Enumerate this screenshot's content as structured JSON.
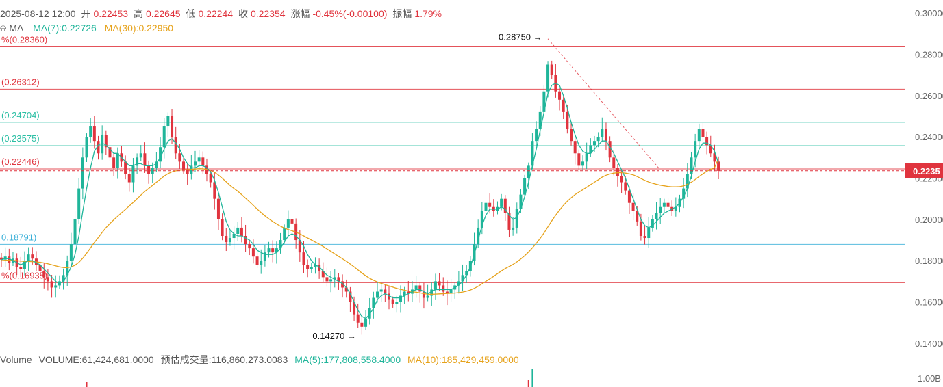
{
  "header": {
    "datetime": "2025-08-12 12:00",
    "open_label": "开",
    "open": "0.22453",
    "high_label": "高",
    "high": "0.22645",
    "low_label": "低",
    "low": "0.22244",
    "close_label": "收",
    "close": "0.22354",
    "change_label": "涨幅",
    "change": "-0.45%(-0.00100)",
    "amplitude_label": "振幅",
    "amplitude": "1.79%"
  },
  "ma_legend": {
    "label": "MA",
    "ma7": "MA(7):0.22726",
    "ma30": "MA(30):0.22950"
  },
  "volume_legend": {
    "label": "Volume",
    "volume": "VOLUME:61,424,681.0000",
    "estimated": "预估成交量:116,860,273.0083",
    "ma5": "MA(5):177,808,558.4000",
    "ma10": "MA(10):185,429,459.0000"
  },
  "colors": {
    "up": "#1fb59a",
    "down": "#e0343e",
    "ma7": "#1fb59a",
    "ma30": "#e6a21a",
    "fib_red": "#e0343e",
    "fib_teal": "#2bbfa4",
    "fib_blue": "#3ab0d8"
  },
  "chart_data": {
    "type": "candlestick",
    "y_ticks": [
      "0.30000",
      "0.28000",
      "0.26000",
      "0.24000",
      "0.22000",
      "0.20000",
      "0.18000",
      "0.16000",
      "0.14000"
    ],
    "ylim": [
      0.138,
      0.301
    ],
    "current_price": "0.2235",
    "current_price_value": 0.22354,
    "annotations": {
      "high": {
        "label": "0.28750",
        "value": 0.2875,
        "index": 141
      },
      "low": {
        "label": "0.14270",
        "value": 0.1427,
        "index": 93
      }
    },
    "fib_levels": [
      {
        "label": "%(0.28360)",
        "value": 0.2836,
        "color": "red"
      },
      {
        "label": "(0.26312)",
        "value": 0.26312,
        "color": "red"
      },
      {
        "label": "(0.24704)",
        "value": 0.24704,
        "color": "teal"
      },
      {
        "label": "(0.23575)",
        "value": 0.23575,
        "color": "teal"
      },
      {
        "label": "(0.22446)",
        "value": 0.22446,
        "color": "red"
      },
      {
        "label": "0.18791)",
        "value": 0.18791,
        "color": "blue"
      },
      {
        "label": "%(0.16935)",
        "value": 0.16935,
        "color": "red"
      }
    ],
    "closes": [
      0.1805,
      0.182,
      0.179,
      0.181,
      0.177,
      0.176,
      0.18,
      0.183,
      0.181,
      0.178,
      0.175,
      0.172,
      0.17,
      0.167,
      0.168,
      0.17,
      0.173,
      0.18,
      0.188,
      0.2,
      0.215,
      0.23,
      0.24,
      0.245,
      0.238,
      0.232,
      0.241,
      0.235,
      0.23,
      0.225,
      0.232,
      0.228,
      0.222,
      0.218,
      0.226,
      0.23,
      0.232,
      0.226,
      0.222,
      0.225,
      0.228,
      0.235,
      0.245,
      0.25,
      0.24,
      0.232,
      0.228,
      0.224,
      0.222,
      0.226,
      0.228,
      0.23,
      0.226,
      0.222,
      0.218,
      0.21,
      0.2,
      0.192,
      0.189,
      0.191,
      0.193,
      0.196,
      0.192,
      0.188,
      0.186,
      0.182,
      0.178,
      0.18,
      0.184,
      0.186,
      0.184,
      0.186,
      0.19,
      0.196,
      0.2,
      0.198,
      0.19,
      0.184,
      0.178,
      0.176,
      0.177,
      0.178,
      0.175,
      0.172,
      0.17,
      0.171,
      0.172,
      0.17,
      0.167,
      0.165,
      0.16,
      0.154,
      0.15,
      0.148,
      0.152,
      0.157,
      0.162,
      0.165,
      0.166,
      0.164,
      0.161,
      0.159,
      0.16,
      0.163,
      0.165,
      0.164,
      0.166,
      0.168,
      0.165,
      0.162,
      0.163,
      0.166,
      0.17,
      0.168,
      0.165,
      0.164,
      0.166,
      0.168,
      0.17,
      0.173,
      0.175,
      0.18,
      0.188,
      0.196,
      0.204,
      0.208,
      0.206,
      0.204,
      0.206,
      0.21,
      0.203,
      0.195,
      0.196,
      0.205,
      0.212,
      0.22,
      0.226,
      0.238,
      0.244,
      0.252,
      0.262,
      0.275,
      0.27,
      0.262,
      0.258,
      0.252,
      0.244,
      0.238,
      0.232,
      0.226,
      0.228,
      0.232,
      0.236,
      0.238,
      0.24,
      0.244,
      0.238,
      0.23,
      0.225,
      0.221,
      0.218,
      0.214,
      0.208,
      0.204,
      0.199,
      0.192,
      0.191,
      0.196,
      0.2,
      0.203,
      0.206,
      0.208,
      0.206,
      0.204,
      0.206,
      0.21,
      0.215,
      0.222,
      0.23,
      0.238,
      0.244,
      0.24,
      0.236,
      0.232,
      0.228,
      0.2235
    ],
    "ma7": [
      0.1805,
      0.181,
      0.181,
      0.18,
      0.179,
      0.178,
      0.179,
      0.18,
      0.18,
      0.179,
      0.178,
      0.176,
      0.174,
      0.172,
      0.17,
      0.169,
      0.17,
      0.173,
      0.177,
      0.183,
      0.192,
      0.204,
      0.215,
      0.225,
      0.233,
      0.236,
      0.237,
      0.236,
      0.234,
      0.232,
      0.232,
      0.23,
      0.228,
      0.226,
      0.226,
      0.227,
      0.227,
      0.226,
      0.226,
      0.226,
      0.227,
      0.23,
      0.234,
      0.238,
      0.239,
      0.237,
      0.234,
      0.23,
      0.227,
      0.225,
      0.225,
      0.226,
      0.226,
      0.225,
      0.223,
      0.219,
      0.213,
      0.206,
      0.199,
      0.195,
      0.193,
      0.192,
      0.192,
      0.191,
      0.19,
      0.188,
      0.185,
      0.184,
      0.183,
      0.183,
      0.183,
      0.184,
      0.186,
      0.189,
      0.192,
      0.193,
      0.192,
      0.19,
      0.187,
      0.183,
      0.18,
      0.178,
      0.177,
      0.175,
      0.173,
      0.172,
      0.171,
      0.17,
      0.169,
      0.167,
      0.164,
      0.16,
      0.156,
      0.153,
      0.152,
      0.154,
      0.157,
      0.161,
      0.163,
      0.164,
      0.163,
      0.162,
      0.162,
      0.162,
      0.163,
      0.164,
      0.165,
      0.166,
      0.166,
      0.165,
      0.164,
      0.165,
      0.166,
      0.166,
      0.166,
      0.166,
      0.166,
      0.167,
      0.168,
      0.17,
      0.173,
      0.177,
      0.183,
      0.19,
      0.197,
      0.202,
      0.205,
      0.205,
      0.205,
      0.206,
      0.205,
      0.202,
      0.2,
      0.201,
      0.205,
      0.211,
      0.218,
      0.226,
      0.234,
      0.243,
      0.252,
      0.261,
      0.265,
      0.266,
      0.265,
      0.26,
      0.254,
      0.247,
      0.241,
      0.236,
      0.233,
      0.232,
      0.232,
      0.234,
      0.236,
      0.238,
      0.238,
      0.235,
      0.232,
      0.228,
      0.224,
      0.22,
      0.215,
      0.21,
      0.205,
      0.2,
      0.197,
      0.196,
      0.197,
      0.199,
      0.201,
      0.203,
      0.204,
      0.205,
      0.206,
      0.208,
      0.211,
      0.215,
      0.221,
      0.228,
      0.234,
      0.237,
      0.237,
      0.236,
      0.233,
      0.2273
    ],
    "ma30": [
      0.18,
      0.1802,
      0.1802,
      0.1801,
      0.18,
      0.1798,
      0.1797,
      0.1796,
      0.1795,
      0.1794,
      0.1792,
      0.1789,
      0.1785,
      0.178,
      0.1775,
      0.177,
      0.1767,
      0.1766,
      0.177,
      0.1778,
      0.1792,
      0.1812,
      0.1836,
      0.1862,
      0.1888,
      0.1912,
      0.1937,
      0.196,
      0.198,
      0.1998,
      0.2015,
      0.2032,
      0.2048,
      0.2065,
      0.2082,
      0.21,
      0.2118,
      0.2135,
      0.215,
      0.2165,
      0.218,
      0.2195,
      0.221,
      0.2222,
      0.223,
      0.2235,
      0.2238,
      0.224,
      0.2241,
      0.2242,
      0.2244,
      0.2246,
      0.2245,
      0.2242,
      0.2237,
      0.2228,
      0.2215,
      0.2199,
      0.2182,
      0.2165,
      0.215,
      0.2136,
      0.212,
      0.2103,
      0.2086,
      0.2068,
      0.205,
      0.2033,
      0.2017,
      0.2003,
      0.199,
      0.1978,
      0.1967,
      0.1958,
      0.1951,
      0.1945,
      0.1938,
      0.193,
      0.192,
      0.191,
      0.19,
      0.189,
      0.188,
      0.1869,
      0.1857,
      0.1845,
      0.1833,
      0.1821,
      0.1809,
      0.1797,
      0.1784,
      0.177,
      0.1755,
      0.174,
      0.1727,
      0.1715,
      0.1705,
      0.1697,
      0.169,
      0.1684,
      0.1678,
      0.1672,
      0.1666,
      0.1661,
      0.1657,
      0.1653,
      0.165,
      0.1647,
      0.1644,
      0.164,
      0.1638,
      0.1637,
      0.1638,
      0.1639,
      0.164,
      0.1641,
      0.1642,
      0.1643,
      0.1645,
      0.1648,
      0.1652,
      0.1658,
      0.1666,
      0.1676,
      0.1688,
      0.17,
      0.1712,
      0.1724,
      0.1737,
      0.175,
      0.1762,
      0.1772,
      0.1782,
      0.1794,
      0.1808,
      0.1824,
      0.1842,
      0.1862,
      0.1884,
      0.1908,
      0.1934,
      0.1964,
      0.1993,
      0.202,
      0.2045,
      0.2068,
      0.2088,
      0.2105,
      0.212,
      0.2132,
      0.2144,
      0.2156,
      0.2168,
      0.218,
      0.2192,
      0.2205,
      0.2214,
      0.222,
      0.2224,
      0.2226,
      0.2226,
      0.2224,
      0.2221,
      0.2216,
      0.2208,
      0.2198,
      0.2189,
      0.2181,
      0.2175,
      0.217,
      0.2166,
      0.2163,
      0.216,
      0.2158,
      0.2158,
      0.2159,
      0.2163,
      0.217,
      0.218,
      0.2193,
      0.2208,
      0.2221,
      0.2233,
      0.2243,
      0.2251,
      0.2295
    ]
  }
}
